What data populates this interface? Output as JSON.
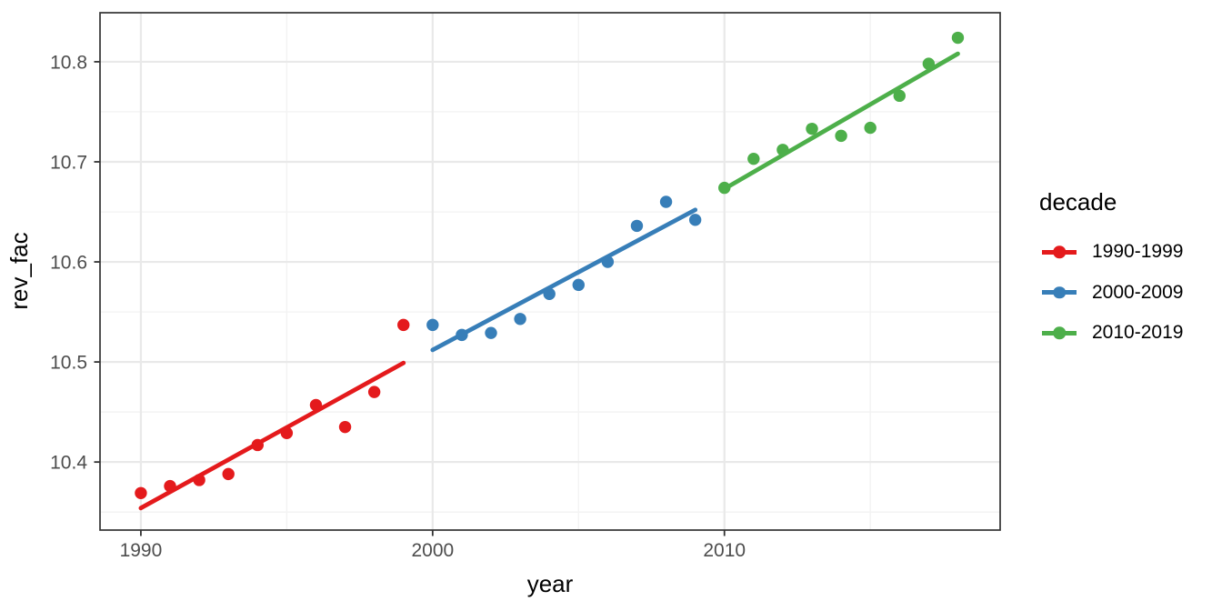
{
  "chart_data": {
    "type": "scatter",
    "title": "",
    "xlabel": "year",
    "ylabel": "rev_fac",
    "legend_title": "decade",
    "legend_position": "right",
    "grid": true,
    "x_domain": [
      1988.6,
      2019.45
    ],
    "y_domain": [
      10.332,
      10.849
    ],
    "x_ticks": [
      1990,
      2000,
      2010
    ],
    "x_tick_labels": [
      "1990",
      "2000",
      "2010"
    ],
    "x_minor_gridlines": [
      1995,
      2005,
      2015
    ],
    "y_ticks": [
      10.4,
      10.5,
      10.6,
      10.7,
      10.8
    ],
    "y_tick_labels": [
      "10.4",
      "10.5",
      "10.6",
      "10.7",
      "10.8"
    ],
    "y_minor_gridlines": [
      10.35,
      10.45,
      10.55,
      10.65,
      10.75
    ],
    "series": [
      {
        "name": "1990-1999",
        "color": "#E41A1C",
        "x": [
          1990,
          1991,
          1992,
          1993,
          1994,
          1995,
          1996,
          1997,
          1998,
          1999
        ],
        "y": [
          10.369,
          10.376,
          10.382,
          10.388,
          10.417,
          10.429,
          10.457,
          10.435,
          10.47,
          10.537
        ],
        "trend": {
          "x1": 1990,
          "y1": 10.354,
          "x2": 1999,
          "y2": 10.499
        }
      },
      {
        "name": "2000-2009",
        "color": "#377EB8",
        "x": [
          2000,
          2001,
          2002,
          2003,
          2004,
          2005,
          2006,
          2007,
          2008,
          2009
        ],
        "y": [
          10.537,
          10.527,
          10.529,
          10.543,
          10.568,
          10.577,
          10.6,
          10.636,
          10.66,
          10.642
        ],
        "trend": {
          "x1": 2000,
          "y1": 10.512,
          "x2": 2009,
          "y2": 10.652
        }
      },
      {
        "name": "2010-2019",
        "color": "#4DAF4A",
        "x": [
          2010,
          2011,
          2012,
          2013,
          2014,
          2015,
          2016,
          2017,
          2018
        ],
        "y": [
          10.674,
          10.703,
          10.712,
          10.733,
          10.726,
          10.734,
          10.766,
          10.798,
          10.824
        ],
        "trend": {
          "x1": 2010,
          "y1": 10.673,
          "x2": 2018,
          "y2": 10.808
        }
      }
    ],
    "style": {
      "background": "#FFFFFF",
      "panel_background": "#FFFFFF",
      "panel_border": "#333333",
      "grid_major": "#E9E9E9",
      "grid_minor": "#F3F3F3",
      "tick_color": "#333333",
      "tick_label_color": "#4D4D4D",
      "title_color": "#000000"
    }
  }
}
